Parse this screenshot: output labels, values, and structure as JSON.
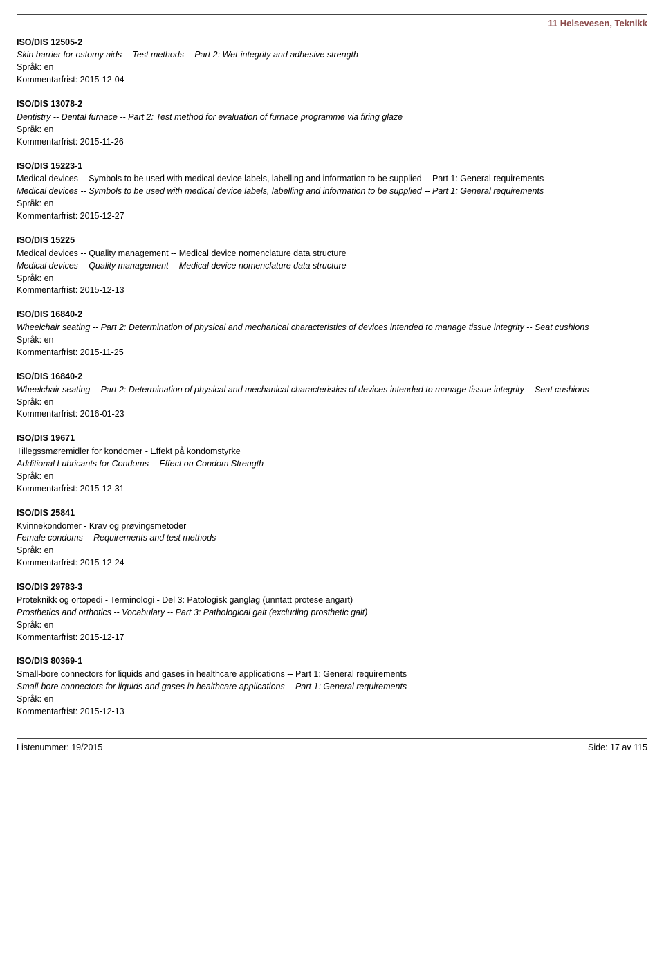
{
  "sectionHeading": "11  Helsevesen, Teknikk",
  "langLabel": "Språk: en",
  "deadlineLabel": "Kommentarfrist: ",
  "entries": [
    {
      "code": "ISO/DIS 12505-2",
      "titleEn": "Skin barrier for ostomy aids -- Test methods -- Part 2: Wet-integrity and adhesive strength",
      "deadline": "2015-12-04"
    },
    {
      "code": "ISO/DIS 13078-2",
      "titleEn": "Dentistry -- Dental furnace -- Part 2: Test method for evaluation of furnace programme via firing glaze",
      "deadline": "2015-11-26"
    },
    {
      "code": "ISO/DIS 15223-1",
      "titleNo": "Medical devices -- Symbols to be used with medical device labels, labelling and information to be supplied -- Part 1: General requirements",
      "titleEn": "Medical devices -- Symbols to be used with medical device labels, labelling and information to be supplied -- Part 1: General requirements",
      "deadline": "2015-12-27"
    },
    {
      "code": "ISO/DIS 15225",
      "titleNo": "Medical devices -- Quality management -- Medical device nomenclature data structure",
      "titleEn": "Medical devices -- Quality management -- Medical device nomenclature data structure",
      "deadline": "2015-12-13"
    },
    {
      "code": "ISO/DIS 16840-2",
      "titleEn": "Wheelchair seating -- Part 2: Determination of physical and mechanical characteristics of devices intended to manage tissue integrity -- Seat cushions",
      "deadline": "2015-11-25"
    },
    {
      "code": "ISO/DIS 16840-2",
      "titleEn": "Wheelchair seating -- Part 2: Determination of physical and mechanical characteristics of devices intended to manage tissue integrity -- Seat cushions",
      "deadline": "2016-01-23"
    },
    {
      "code": "ISO/DIS 19671",
      "titleNo": "Tillegssmøremidler for kondomer - Effekt på kondomstyrke",
      "titleEn": "Additional Lubricants for Condoms -- Effect on Condom Strength",
      "deadline": "2015-12-31"
    },
    {
      "code": "ISO/DIS 25841",
      "titleNo": "Kvinnekondomer - Krav og prøvingsmetoder",
      "titleEn": "Female condoms -- Requirements and test methods",
      "deadline": "2015-12-24"
    },
    {
      "code": "ISO/DIS 29783-3",
      "titleNo": "Proteknikk og ortopedi - Terminologi - Del 3: Patologisk ganglag (unntatt protese angart)",
      "titleEn": "Prosthetics and orthotics -- Vocabulary -- Part 3: Pathological gait (excluding prosthetic gait)",
      "deadline": "2015-12-17"
    },
    {
      "code": "ISO/DIS 80369-1",
      "titleNo": "Small-bore connectors for liquids and gases in healthcare applications -- Part 1: General requirements",
      "titleEn": "Small-bore connectors for liquids and gases in healthcare applications -- Part 1: General requirements",
      "deadline": "2015-12-13"
    }
  ],
  "footer": {
    "left": "Listenummer: 19/2015",
    "right": "Side: 17 av 115"
  }
}
